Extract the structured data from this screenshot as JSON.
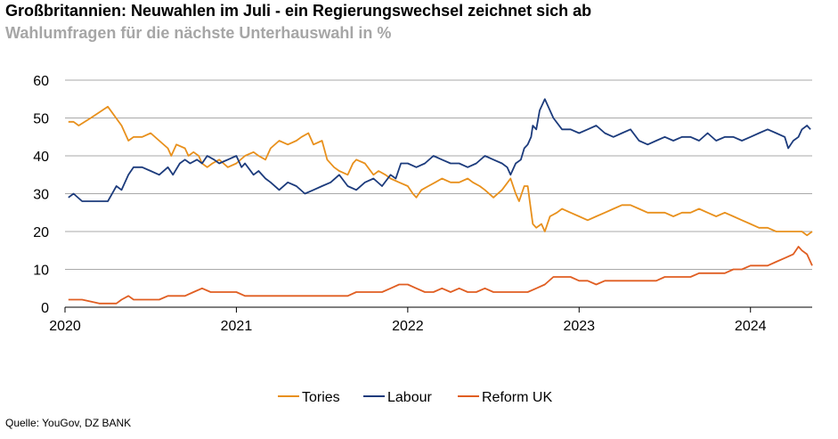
{
  "title": "Großbritannien: Neuwahlen im Juli - ein Regierungswechsel zeichnet sich ab",
  "subtitle": "Wahlumfragen für die nächste Unterhauswahl in %",
  "source": "Quelle: YouGov, DZ BANK",
  "chart_data": {
    "type": "line",
    "title": "Großbritannien: Neuwahlen im Juli - ein Regierungswechsel zeichnet sich ab",
    "subtitle": "Wahlumfragen für die nächste Unterhauswahl in %",
    "xlabel": "",
    "ylabel": "",
    "xlim": [
      2020.0,
      2024.36
    ],
    "ylim": [
      0,
      60
    ],
    "yticks": [
      "0",
      "10",
      "20",
      "30",
      "40",
      "50",
      "60"
    ],
    "xticks": [
      "2020",
      "2021",
      "2022",
      "2023",
      "2024"
    ],
    "grid": true,
    "legend_position": "bottom",
    "series": [
      {
        "name": "Tories",
        "color": "#e8901c",
        "x": [
          2020.02,
          2020.05,
          2020.08,
          2020.15,
          2020.25,
          2020.33,
          2020.37,
          2020.4,
          2020.45,
          2020.5,
          2020.55,
          2020.6,
          2020.62,
          2020.65,
          2020.7,
          2020.72,
          2020.75,
          2020.78,
          2020.8,
          2020.83,
          2020.86,
          2020.9,
          2020.95,
          2021.0,
          2021.05,
          2021.1,
          2021.13,
          2021.17,
          2021.2,
          2021.25,
          2021.3,
          2021.35,
          2021.38,
          2021.42,
          2021.45,
          2021.5,
          2021.53,
          2021.57,
          2021.6,
          2021.65,
          2021.68,
          2021.7,
          2021.75,
          2021.8,
          2021.83,
          2021.87,
          2021.9,
          2021.95,
          2022.0,
          2022.03,
          2022.05,
          2022.08,
          2022.12,
          2022.16,
          2022.2,
          2022.25,
          2022.3,
          2022.35,
          2022.38,
          2022.42,
          2022.45,
          2022.5,
          2022.55,
          2022.6,
          2022.63,
          2022.65,
          2022.68,
          2022.7,
          2022.73,
          2022.75,
          2022.78,
          2022.8,
          2022.83,
          2022.87,
          2022.9,
          2022.95,
          2023.0,
          2023.05,
          2023.1,
          2023.15,
          2023.2,
          2023.25,
          2023.3,
          2023.35,
          2023.4,
          2023.45,
          2023.5,
          2023.55,
          2023.6,
          2023.65,
          2023.7,
          2023.75,
          2023.8,
          2023.85,
          2023.9,
          2023.95,
          2024.0,
          2024.05,
          2024.1,
          2024.15,
          2024.2,
          2024.25,
          2024.3,
          2024.33,
          2024.36
        ],
        "values": [
          49,
          49,
          48,
          50,
          53,
          48,
          44,
          45,
          45,
          46,
          44,
          42,
          40,
          43,
          42,
          40,
          41,
          40,
          38,
          37,
          38,
          39,
          37,
          38,
          40,
          41,
          40,
          39,
          42,
          44,
          43,
          44,
          45,
          46,
          43,
          44,
          39,
          37,
          36,
          35,
          38,
          39,
          38,
          35,
          36,
          35,
          34,
          33,
          32,
          30,
          29,
          31,
          32,
          33,
          34,
          33,
          33,
          34,
          33,
          32,
          31,
          29,
          31,
          34,
          30,
          28,
          32,
          32,
          22,
          21,
          22,
          20,
          24,
          25,
          26,
          25,
          24,
          23,
          24,
          25,
          26,
          27,
          27,
          26,
          25,
          25,
          25,
          24,
          25,
          25,
          26,
          25,
          24,
          25,
          24,
          23,
          22,
          21,
          21,
          20,
          20,
          20,
          20,
          19,
          20
        ]
      },
      {
        "name": "Labour",
        "color": "#1c3b7c",
        "x": [
          2020.02,
          2020.05,
          2020.1,
          2020.15,
          2020.2,
          2020.25,
          2020.3,
          2020.33,
          2020.37,
          2020.4,
          2020.45,
          2020.5,
          2020.55,
          2020.6,
          2020.63,
          2020.67,
          2020.7,
          2020.73,
          2020.77,
          2020.8,
          2020.83,
          2020.87,
          2020.9,
          2020.95,
          2021.0,
          2021.03,
          2021.05,
          2021.1,
          2021.13,
          2021.17,
          2021.2,
          2021.25,
          2021.3,
          2021.35,
          2021.4,
          2021.45,
          2021.5,
          2021.55,
          2021.6,
          2021.65,
          2021.7,
          2021.75,
          2021.8,
          2021.85,
          2021.9,
          2021.93,
          2021.96,
          2022.0,
          2022.05,
          2022.1,
          2022.15,
          2022.2,
          2022.25,
          2022.3,
          2022.35,
          2022.4,
          2022.45,
          2022.5,
          2022.55,
          2022.58,
          2022.6,
          2022.63,
          2022.66,
          2022.68,
          2022.7,
          2022.72,
          2022.73,
          2022.75,
          2022.77,
          2022.8,
          2022.85,
          2022.9,
          2022.95,
          2023.0,
          2023.05,
          2023.1,
          2023.15,
          2023.2,
          2023.25,
          2023.3,
          2023.35,
          2023.4,
          2023.45,
          2023.5,
          2023.55,
          2023.6,
          2023.65,
          2023.7,
          2023.75,
          2023.8,
          2023.85,
          2023.9,
          2023.95,
          2024.0,
          2024.05,
          2024.1,
          2024.15,
          2024.2,
          2024.22,
          2024.25,
          2024.28,
          2024.3,
          2024.33,
          2024.35
        ],
        "values": [
          29,
          30,
          28,
          28,
          28,
          28,
          32,
          31,
          35,
          37,
          37,
          36,
          35,
          37,
          35,
          38,
          39,
          38,
          39,
          38,
          40,
          39,
          38,
          39,
          40,
          37,
          38,
          35,
          36,
          34,
          33,
          31,
          33,
          32,
          30,
          31,
          32,
          33,
          35,
          32,
          31,
          33,
          34,
          32,
          35,
          34,
          38,
          38,
          37,
          38,
          40,
          39,
          38,
          38,
          37,
          38,
          40,
          39,
          38,
          37,
          35,
          38,
          39,
          42,
          43,
          45,
          48,
          47,
          52,
          55,
          50,
          47,
          47,
          46,
          47,
          48,
          46,
          45,
          46,
          47,
          44,
          43,
          44,
          45,
          44,
          45,
          45,
          44,
          46,
          44,
          45,
          45,
          44,
          45,
          46,
          47,
          46,
          45,
          42,
          44,
          45,
          47,
          48,
          47
        ]
      },
      {
        "name": "Reform UK",
        "color": "#e05e22",
        "x": [
          2020.02,
          2020.1,
          2020.15,
          2020.2,
          2020.25,
          2020.3,
          2020.33,
          2020.37,
          2020.4,
          2020.45,
          2020.5,
          2020.55,
          2020.6,
          2020.65,
          2020.7,
          2020.75,
          2020.8,
          2020.85,
          2020.9,
          2020.95,
          2021.0,
          2021.05,
          2021.1,
          2021.15,
          2021.2,
          2021.25,
          2021.3,
          2021.35,
          2021.4,
          2021.45,
          2021.5,
          2021.55,
          2021.6,
          2021.65,
          2021.7,
          2021.75,
          2021.8,
          2021.85,
          2021.9,
          2021.95,
          2022.0,
          2022.05,
          2022.1,
          2022.15,
          2022.2,
          2022.25,
          2022.3,
          2022.35,
          2022.4,
          2022.45,
          2022.5,
          2022.55,
          2022.6,
          2022.65,
          2022.7,
          2022.75,
          2022.8,
          2022.85,
          2022.9,
          2022.95,
          2023.0,
          2023.05,
          2023.1,
          2023.15,
          2023.2,
          2023.25,
          2023.3,
          2023.35,
          2023.4,
          2023.45,
          2023.5,
          2023.55,
          2023.6,
          2023.65,
          2023.7,
          2023.75,
          2023.8,
          2023.85,
          2023.9,
          2023.95,
          2024.0,
          2024.05,
          2024.1,
          2024.15,
          2024.2,
          2024.25,
          2024.28,
          2024.3,
          2024.33,
          2024.36
        ],
        "values": [
          2,
          2,
          1.5,
          1,
          1,
          1,
          2,
          3,
          2,
          2,
          2,
          2,
          3,
          3,
          3,
          4,
          5,
          4,
          4,
          4,
          4,
          3,
          3,
          3,
          3,
          3,
          3,
          3,
          3,
          3,
          3,
          3,
          3,
          3,
          4,
          4,
          4,
          4,
          5,
          6,
          6,
          5,
          4,
          4,
          5,
          4,
          5,
          4,
          4,
          5,
          4,
          4,
          4,
          4,
          4,
          5,
          6,
          8,
          8,
          8,
          7,
          7,
          6,
          7,
          7,
          7,
          7,
          7,
          7,
          7,
          8,
          8,
          8,
          8,
          9,
          9,
          9,
          9,
          10,
          10,
          11,
          11,
          11,
          12,
          13,
          14,
          16,
          15,
          14,
          11
        ]
      }
    ]
  }
}
